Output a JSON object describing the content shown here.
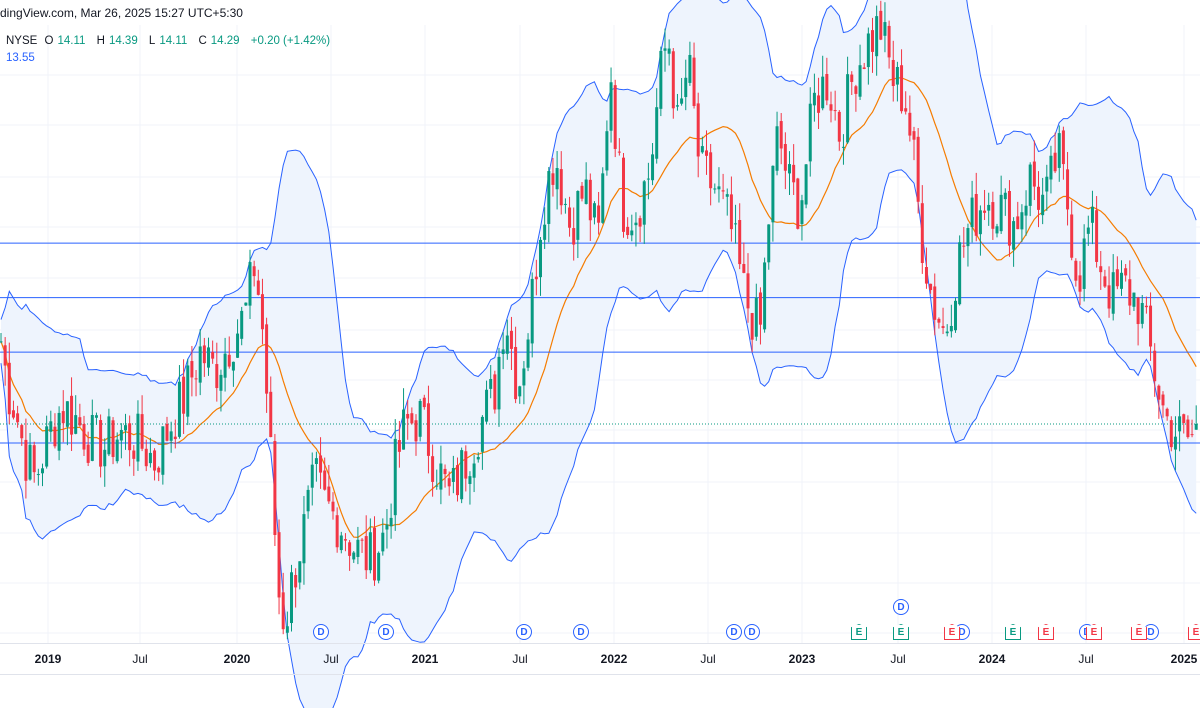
{
  "header": {
    "source_text": "dingView.com, Mar 26, 2025 15:27 UTC+5:30"
  },
  "legend": {
    "exchange": "NYSE",
    "o_label": "O",
    "o_value": "14.11",
    "h_label": "H",
    "h_value": "14.39",
    "l_label": "L",
    "l_value": "14.11",
    "c_label": "C",
    "c_value": "14.29",
    "change": "+0.20 (+1.42%)",
    "ma_value": "13.55"
  },
  "colors": {
    "up": "#089981",
    "down": "#f23645",
    "ma": "#f57c00",
    "band": "#2962ff",
    "band_fill": "#eef4fd",
    "hline": "#2962ff"
  },
  "chart_data": {
    "type": "candlestick",
    "title": "",
    "xlabel": "",
    "ylabel": "",
    "x_ticks": [
      {
        "label": "2019",
        "year": true
      },
      {
        "label": "Jul",
        "year": false
      },
      {
        "label": "2020",
        "year": true
      },
      {
        "label": "Jul",
        "year": false
      },
      {
        "label": "2021",
        "year": true
      },
      {
        "label": "Jul",
        "year": false
      },
      {
        "label": "2022",
        "year": true
      },
      {
        "label": "Jul",
        "year": false
      },
      {
        "label": "2023",
        "year": true
      },
      {
        "label": "Jul",
        "year": false
      },
      {
        "label": "2024",
        "year": true
      },
      {
        "label": "Jul",
        "year": false
      },
      {
        "label": "2025",
        "year": true
      }
    ],
    "y_range": [
      10,
      27
    ],
    "horizontal_levels": [
      21.0,
      19.5,
      18.0,
      15.5
    ],
    "price_path": [
      [
        0,
        18.5
      ],
      [
        8,
        17
      ],
      [
        15,
        16.5
      ],
      [
        25,
        15.2
      ],
      [
        35,
        14.5
      ],
      [
        50,
        15.8
      ],
      [
        62,
        16.5
      ],
      [
        75,
        16.2
      ],
      [
        90,
        15.6
      ],
      [
        105,
        15.4
      ],
      [
        120,
        15.8
      ],
      [
        140,
        15.5
      ],
      [
        155,
        15.0
      ],
      [
        170,
        16.0
      ],
      [
        185,
        16.8
      ],
      [
        200,
        18.0
      ],
      [
        215,
        17.5
      ],
      [
        230,
        18.3
      ],
      [
        245,
        19.0
      ],
      [
        255,
        20.5
      ],
      [
        263,
        18.5
      ],
      [
        270,
        15.5
      ],
      [
        278,
        11.5
      ],
      [
        285,
        10.5
      ],
      [
        293,
        11.8
      ],
      [
        303,
        13.0
      ],
      [
        315,
        14.5
      ],
      [
        325,
        13.8
      ],
      [
        340,
        13.3
      ],
      [
        355,
        12.6
      ],
      [
        370,
        12.3
      ],
      [
        385,
        13.0
      ],
      [
        395,
        14.8
      ],
      [
        405,
        16.0
      ],
      [
        420,
        16.2
      ],
      [
        435,
        15.0
      ],
      [
        450,
        14.0
      ],
      [
        465,
        15.0
      ],
      [
        480,
        16.0
      ],
      [
        495,
        17.0
      ],
      [
        505,
        19.2
      ],
      [
        518,
        17.0
      ],
      [
        530,
        19.0
      ],
      [
        542,
        22.0
      ],
      [
        555,
        23.5
      ],
      [
        570,
        21.5
      ],
      [
        585,
        22.5
      ],
      [
        598,
        21.0
      ],
      [
        605,
        23.5
      ],
      [
        610,
        26.0
      ],
      [
        622,
        22.0
      ],
      [
        635,
        21.8
      ],
      [
        650,
        23.0
      ],
      [
        660,
        25.5
      ],
      [
        668,
        26.8
      ],
      [
        678,
        24.0
      ],
      [
        688,
        26.0
      ],
      [
        700,
        23.0
      ],
      [
        715,
        22.5
      ],
      [
        730,
        21.5
      ],
      [
        745,
        19.5
      ],
      [
        760,
        18.5
      ],
      [
        768,
        21.5
      ],
      [
        778,
        24.0
      ],
      [
        790,
        22.5
      ],
      [
        800,
        22.0
      ],
      [
        815,
        25.0
      ],
      [
        828,
        25.5
      ],
      [
        840,
        24.0
      ],
      [
        855,
        25.8
      ],
      [
        868,
        26.5
      ],
      [
        880,
        27.0
      ],
      [
        893,
        25.5
      ],
      [
        905,
        25.0
      ],
      [
        913,
        23.5
      ],
      [
        920,
        21.5
      ],
      [
        932,
        19.5
      ],
      [
        945,
        18.5
      ],
      [
        958,
        20.5
      ],
      [
        970,
        21.5
      ],
      [
        985,
        22.3
      ],
      [
        1000,
        22.0
      ],
      [
        1015,
        21.5
      ],
      [
        1030,
        22.8
      ],
      [
        1045,
        22.0
      ],
      [
        1058,
        23.5
      ],
      [
        1068,
        22.0
      ],
      [
        1078,
        20.0
      ],
      [
        1090,
        21.5
      ],
      [
        1100,
        20.5
      ],
      [
        1112,
        19.5
      ],
      [
        1125,
        19.8
      ],
      [
        1140,
        19.3
      ],
      [
        1152,
        17.8
      ],
      [
        1165,
        16.2
      ],
      [
        1180,
        15.7
      ],
      [
        1190,
        15.6
      ],
      [
        1200,
        16.0
      ]
    ],
    "events": [
      {
        "type": "dividend",
        "label": "D"
      },
      {
        "type": "dividend",
        "label": "D"
      },
      {
        "type": "dividend",
        "label": "D"
      },
      {
        "type": "dividend",
        "label": "D"
      },
      {
        "type": "dividend",
        "label": "D"
      },
      {
        "type": "dividend",
        "label": "D"
      },
      {
        "type": "dividend",
        "label": "D"
      },
      {
        "type": "dividend",
        "label": "D"
      },
      {
        "type": "dividend",
        "label": "D"
      },
      {
        "type": "dividend",
        "label": "D"
      },
      {
        "type": "earnings-up",
        "label": "E"
      },
      {
        "type": "earnings-up",
        "label": "E"
      },
      {
        "type": "earnings-down",
        "label": "E"
      },
      {
        "type": "earnings-up",
        "label": "E"
      },
      {
        "type": "earnings-down",
        "label": "E"
      },
      {
        "type": "earnings-down",
        "label": "E"
      },
      {
        "type": "earnings-down",
        "label": "E"
      },
      {
        "type": "earnings-down",
        "label": "E"
      }
    ]
  }
}
